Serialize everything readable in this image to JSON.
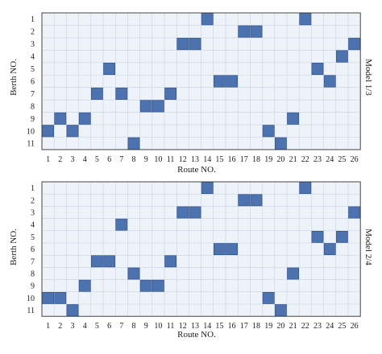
{
  "chart_data": [
    {
      "type": "heatmap",
      "side_label": "Model 1/3",
      "xlabel": "Route NO.",
      "ylabel": "Berth NO.",
      "x_ticks": [
        1,
        2,
        3,
        4,
        5,
        6,
        7,
        8,
        9,
        10,
        11,
        12,
        13,
        14,
        15,
        16,
        17,
        18,
        19,
        20,
        21,
        22,
        23,
        24,
        25,
        26
      ],
      "y_ticks": [
        1,
        2,
        3,
        4,
        5,
        6,
        7,
        8,
        9,
        10,
        11
      ],
      "assignments": [
        {
          "route": 1,
          "berth": 10
        },
        {
          "route": 2,
          "berth": 9
        },
        {
          "route": 3,
          "berth": 10
        },
        {
          "route": 4,
          "berth": 9
        },
        {
          "route": 5,
          "berth": 7
        },
        {
          "route": 6,
          "berth": 5
        },
        {
          "route": 7,
          "berth": 7
        },
        {
          "route": 8,
          "berth": 11
        },
        {
          "route": 9,
          "berth": 8
        },
        {
          "route": 10,
          "berth": 8
        },
        {
          "route": 11,
          "berth": 7
        },
        {
          "route": 12,
          "berth": 3
        },
        {
          "route": 13,
          "berth": 3
        },
        {
          "route": 14,
          "berth": 1
        },
        {
          "route": 15,
          "berth": 6
        },
        {
          "route": 16,
          "berth": 6
        },
        {
          "route": 17,
          "berth": 2
        },
        {
          "route": 18,
          "berth": 2
        },
        {
          "route": 19,
          "berth": 10
        },
        {
          "route": 20,
          "berth": 11
        },
        {
          "route": 21,
          "berth": 9
        },
        {
          "route": 22,
          "berth": 1
        },
        {
          "route": 23,
          "berth": 5
        },
        {
          "route": 24,
          "berth": 6
        },
        {
          "route": 25,
          "berth": 4
        },
        {
          "route": 26,
          "berth": 3
        }
      ]
    },
    {
      "type": "heatmap",
      "side_label": "Model 2/4",
      "xlabel": "Route NO.",
      "ylabel": "Berth NO.",
      "x_ticks": [
        1,
        2,
        3,
        4,
        5,
        6,
        7,
        8,
        9,
        10,
        11,
        12,
        13,
        14,
        15,
        16,
        17,
        18,
        19,
        20,
        21,
        22,
        23,
        24,
        25,
        26
      ],
      "y_ticks": [
        1,
        2,
        3,
        4,
        5,
        6,
        7,
        8,
        9,
        10,
        11
      ],
      "assignments": [
        {
          "route": 1,
          "berth": 10
        },
        {
          "route": 2,
          "berth": 10
        },
        {
          "route": 3,
          "berth": 11
        },
        {
          "route": 4,
          "berth": 9
        },
        {
          "route": 5,
          "berth": 7
        },
        {
          "route": 6,
          "berth": 7
        },
        {
          "route": 7,
          "berth": 4
        },
        {
          "route": 8,
          "berth": 8
        },
        {
          "route": 9,
          "berth": 9
        },
        {
          "route": 10,
          "berth": 9
        },
        {
          "route": 11,
          "berth": 7
        },
        {
          "route": 12,
          "berth": 3
        },
        {
          "route": 13,
          "berth": 3
        },
        {
          "route": 14,
          "berth": 1
        },
        {
          "route": 15,
          "berth": 6
        },
        {
          "route": 16,
          "berth": 6
        },
        {
          "route": 17,
          "berth": 2
        },
        {
          "route": 18,
          "berth": 2
        },
        {
          "route": 19,
          "berth": 10
        },
        {
          "route": 20,
          "berth": 11
        },
        {
          "route": 21,
          "berth": 8
        },
        {
          "route": 22,
          "berth": 1
        },
        {
          "route": 23,
          "berth": 5
        },
        {
          "route": 24,
          "berth": 6
        },
        {
          "route": 25,
          "berth": 5
        },
        {
          "route": 26,
          "berth": 3
        }
      ]
    }
  ],
  "colors": {
    "cell_fill": "#eef3fa",
    "grid_line": "#c8d2e0",
    "frame": "#444444",
    "assigned": "#4c72b0",
    "assigned_edge": "#2f4f86"
  }
}
